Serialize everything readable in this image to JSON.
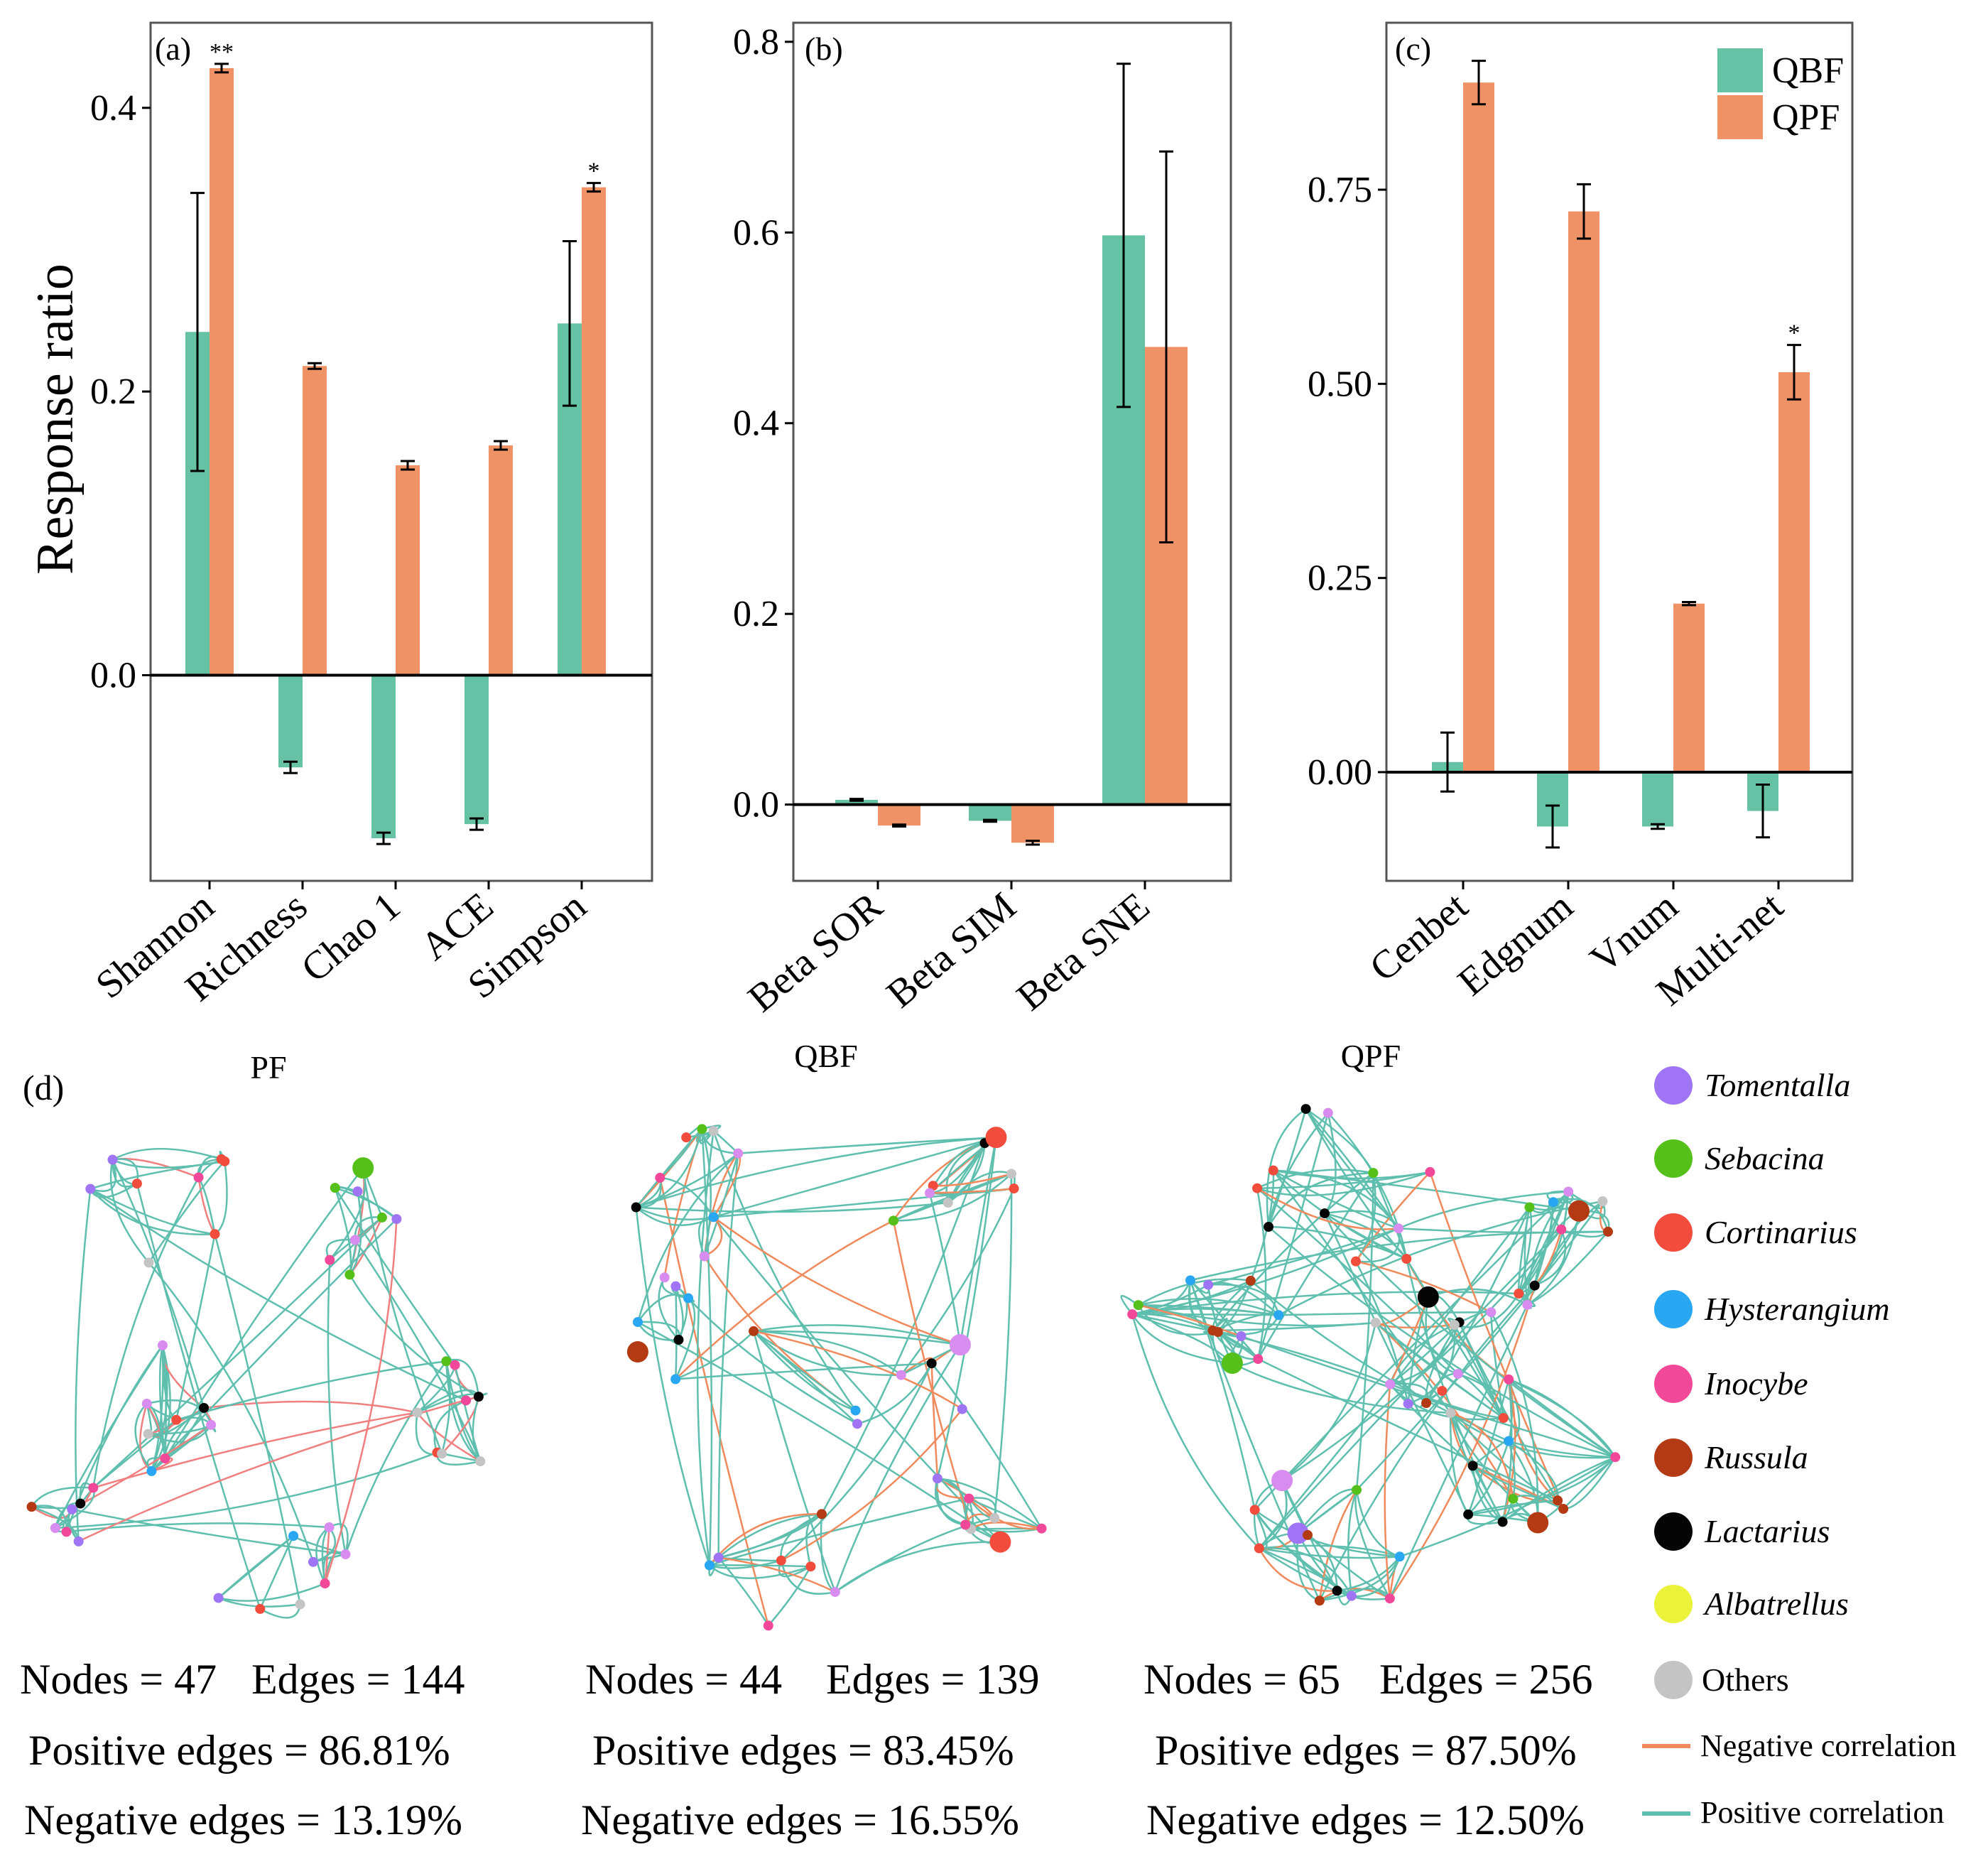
{
  "colors": {
    "QBF": "#66c2a5",
    "QPF": "#ef9266",
    "negative": "#f08a5d",
    "positive": "#5fbfae",
    "negative_pf": "#f07f7f"
  },
  "y_axis_label": "Response ratio",
  "chart_data": [
    {
      "type": "bar",
      "panel": "(a)",
      "categories": [
        "Shannon",
        "Richness",
        "Chao 1",
        "ACE",
        "Simpson"
      ],
      "series": [
        {
          "name": "QBF",
          "values": [
            0.242,
            -0.065,
            -0.115,
            -0.105,
            0.248
          ],
          "errors": [
            0.098,
            0.004,
            0.004,
            0.004,
            0.058
          ]
        },
        {
          "name": "QPF",
          "values": [
            0.428,
            0.218,
            0.148,
            0.162,
            0.344
          ],
          "errors": [
            0.003,
            0.002,
            0.003,
            0.003,
            0.003
          ]
        }
      ],
      "significance": [
        "**",
        "",
        "",
        "",
        "*"
      ],
      "ylim": [
        -0.145,
        0.46
      ],
      "yticks": [
        0.0,
        0.2,
        0.4
      ],
      "ytick_labels": [
        "0.0",
        "0.2",
        "0.4"
      ]
    },
    {
      "type": "bar",
      "panel": "(b)",
      "categories": [
        "Beta SOR",
        "Beta SIM",
        "Beta SNE"
      ],
      "series": [
        {
          "name": "QBF",
          "values": [
            0.005,
            -0.017,
            0.597
          ],
          "errors": [
            0.001,
            0.001,
            0.18
          ]
        },
        {
          "name": "QPF",
          "values": [
            -0.022,
            -0.04,
            0.48
          ],
          "errors": [
            0.001,
            0.002,
            0.205
          ]
        }
      ],
      "significance": [
        "",
        "",
        ""
      ],
      "ylim": [
        -0.08,
        0.82
      ],
      "yticks": [
        0.0,
        0.2,
        0.4,
        0.6,
        0.8
      ],
      "ytick_labels": [
        "0.0",
        "0.2",
        "0.4",
        "0.6",
        "0.8"
      ]
    },
    {
      "type": "bar",
      "panel": "(c)",
      "categories": [
        "Cenbet",
        "Edgnum",
        "Vnum",
        "Multi-net"
      ],
      "series": [
        {
          "name": "QBF",
          "values": [
            0.013,
            -0.07,
            -0.07,
            -0.05
          ],
          "errors": [
            0.038,
            0.027,
            0.003,
            0.034
          ]
        },
        {
          "name": "QPF",
          "values": [
            0.888,
            0.722,
            0.217,
            0.515
          ],
          "errors": [
            0.028,
            0.035,
            0.002,
            0.035
          ]
        }
      ],
      "significance": [
        "",
        "",
        "",
        "*"
      ],
      "ylim": [
        -0.14,
        0.965
      ],
      "yticks": [
        0.0,
        0.25,
        0.5,
        0.75
      ],
      "ytick_labels": [
        "0.00",
        "0.25",
        "0.50",
        "0.75"
      ],
      "legend": [
        "QBF",
        "QPF"
      ],
      "legend_position": "top-right"
    }
  ],
  "panel_d": {
    "label": "(d)",
    "networks": [
      {
        "title": "PF",
        "nodes_text": "Nodes = 47",
        "edges_text": "Edges = 144",
        "positive_text": "Positive edges = 86.81%",
        "negative_text": "Negative edges = 13.19%"
      },
      {
        "title": "QBF",
        "nodes_text": "Nodes = 44",
        "edges_text": "Edges = 139",
        "positive_text": "Positive edges = 83.45%",
        "negative_text": "Negative edges = 16.55%"
      },
      {
        "title": "QPF",
        "nodes_text": "Nodes = 65",
        "edges_text": "Edges = 256",
        "positive_text": "Positive edges = 87.50%",
        "negative_text": "Negative edges = 12.50%"
      }
    ],
    "legend": [
      {
        "name": "Tomentalla",
        "color": "#9f74f5"
      },
      {
        "name": "Sebacina",
        "color": "#55c01a"
      },
      {
        "name": "Cortinarius",
        "color": "#f24c3d"
      },
      {
        "name": "Hysterangium",
        "color": "#2aa7f2"
      },
      {
        "name": "Inocybe",
        "color": "#f2489a"
      },
      {
        "name": "Russula",
        "color": "#b33a12"
      },
      {
        "name": "Lactarius",
        "color": "#050505"
      },
      {
        "name": "Albatrellus",
        "color": "#eaf23a"
      },
      {
        "name": "Others",
        "color": "#c4c4c4"
      }
    ],
    "edge_legend": {
      "negative": "Negative correlation",
      "positive": "Positive correlation"
    }
  }
}
